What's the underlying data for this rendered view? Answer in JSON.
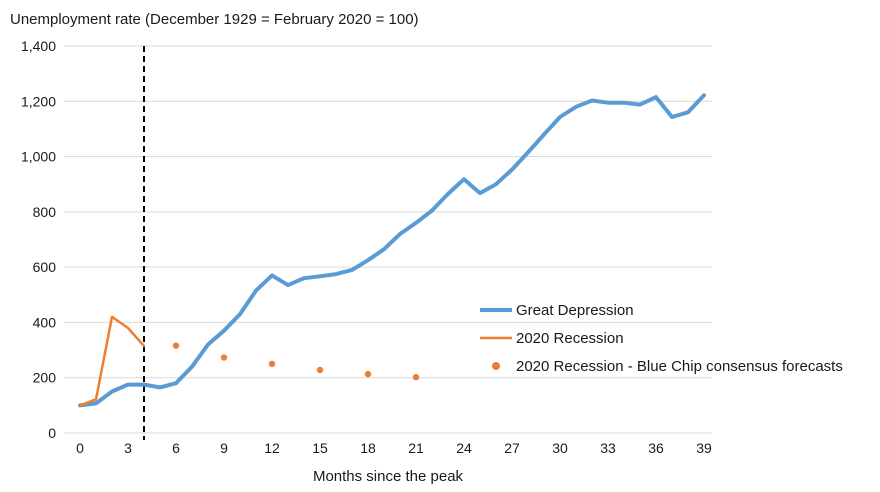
{
  "chart_data": {
    "type": "line",
    "title": "",
    "ylabel": "Unemployment rate (December 1929 = February 2020 = 100)",
    "xlabel": "Months since the peak",
    "xlim": [
      -1,
      39.5
    ],
    "ylim": [
      0,
      1400
    ],
    "x_ticks": [
      0,
      3,
      6,
      9,
      12,
      15,
      18,
      21,
      24,
      27,
      30,
      33,
      36,
      39
    ],
    "y_ticks": [
      0,
      200,
      400,
      600,
      800,
      1000,
      1200,
      1400
    ],
    "y_tick_labels": [
      "0",
      "200",
      "400",
      "600",
      "800",
      "1,000",
      "1,200",
      "1,400"
    ],
    "grid": "horizontal",
    "legend_position": "right",
    "reference_line": {
      "x": 4,
      "style": "dashed",
      "color": "#000000"
    },
    "series": [
      {
        "name": "Great Depression",
        "style": "line",
        "color": "#5b9bd5",
        "x": [
          0,
          1,
          2,
          3,
          4,
          5,
          6,
          7,
          8,
          9,
          10,
          11,
          12,
          13,
          14,
          15,
          16,
          17,
          18,
          19,
          20,
          21,
          22,
          23,
          24,
          25,
          26,
          27,
          28,
          29,
          30,
          31,
          32,
          33,
          34,
          35,
          36,
          37,
          38,
          39
        ],
        "values": [
          100,
          107,
          150,
          175,
          175,
          165,
          180,
          240,
          320,
          370,
          430,
          515,
          570,
          535,
          560,
          567,
          575,
          590,
          625,
          665,
          720,
          760,
          805,
          865,
          918,
          868,
          900,
          953,
          1015,
          1080,
          1143,
          1180,
          1203,
          1195,
          1195,
          1188,
          1215,
          1143,
          1160,
          1222
        ]
      },
      {
        "name": "2020 Recession",
        "style": "line",
        "color": "#ed7d31",
        "x": [
          0,
          1,
          2,
          3,
          4
        ],
        "values": [
          100,
          122,
          420,
          380,
          315
        ]
      },
      {
        "name": "2020 Recession - Blue Chip consensus forecasts",
        "style": "scatter",
        "color": "#ed7d31",
        "x": [
          6,
          9,
          12,
          15,
          18,
          21
        ],
        "values": [
          316,
          273,
          250,
          228,
          213,
          202
        ]
      }
    ]
  }
}
